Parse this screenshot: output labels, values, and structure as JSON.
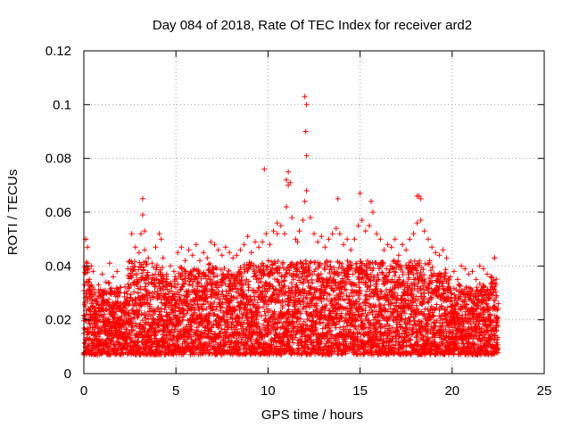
{
  "chart_data": {
    "type": "scatter",
    "title": "Day 084 of 2018, Rate Of TEC Index for receiver ard2",
    "xlabel": "GPS time / hours",
    "ylabel": "ROTI / TECUs",
    "xlim": [
      0,
      25
    ],
    "ylim": [
      0,
      0.12
    ],
    "xticks": [
      0,
      5,
      10,
      15,
      20,
      25
    ],
    "yticks": [
      0,
      0.02,
      0.04,
      0.06,
      0.08,
      0.1,
      0.12
    ],
    "ytick_labels": [
      "0",
      "0.02",
      "0.04",
      "0.06",
      "0.08",
      "0.1",
      "0.12"
    ],
    "grid": true,
    "marker": "+",
    "color": "#ff0000",
    "series": [
      {
        "name": "ard2",
        "x": [
          0.0,
          0.1,
          0.2,
          0.3,
          0.4,
          0.5,
          0.6,
          0.8,
          1.0,
          1.2,
          1.4,
          1.6,
          1.8,
          2.0,
          2.2,
          2.4,
          2.6,
          2.8,
          3.0,
          3.1,
          3.2,
          3.3,
          3.5,
          3.7,
          3.9,
          4.1,
          4.3,
          4.5,
          4.7,
          4.9,
          5.1,
          5.3,
          5.5,
          5.7,
          5.9,
          6.1,
          6.3,
          6.5,
          6.7,
          6.9,
          7.1,
          7.3,
          7.5,
          7.7,
          7.9,
          8.1,
          8.3,
          8.5,
          8.7,
          8.9,
          9.1,
          9.3,
          9.5,
          9.7,
          9.9,
          10.1,
          10.3,
          10.5,
          10.7,
          10.9,
          11.0,
          11.1,
          11.3,
          11.5,
          11.7,
          11.9,
          12.0,
          12.1,
          12.3,
          12.5,
          12.7,
          12.9,
          13.1,
          13.3,
          13.5,
          13.7,
          13.9,
          14.1,
          14.3,
          14.5,
          14.7,
          14.9,
          15.1,
          15.3,
          15.5,
          15.7,
          15.9,
          16.1,
          16.3,
          16.5,
          16.7,
          16.9,
          17.1,
          17.3,
          17.5,
          17.7,
          17.9,
          18.1,
          18.3,
          18.5,
          18.7,
          18.9,
          19.1,
          19.3,
          19.5,
          19.7,
          19.9,
          20.1,
          20.3,
          20.5,
          20.7,
          20.9,
          21.1,
          21.3,
          21.5,
          21.7,
          21.9,
          22.1,
          22.3,
          22.4,
          22.5,
          0.1,
          3.2,
          3.3,
          9.8,
          11.0,
          11.1,
          11.2,
          12.0,
          12.1,
          12.05,
          12.1,
          13.8,
          15.0,
          15.6,
          18.1,
          18.2,
          18.3,
          22.3,
          0.2,
          4.2,
          10.5,
          11.6
        ],
        "y": [
          0.015,
          0.05,
          0.041,
          0.035,
          0.04,
          0.038,
          0.03,
          0.033,
          0.037,
          0.034,
          0.041,
          0.036,
          0.038,
          0.032,
          0.03,
          0.039,
          0.052,
          0.047,
          0.045,
          0.052,
          0.059,
          0.046,
          0.043,
          0.041,
          0.047,
          0.052,
          0.043,
          0.037,
          0.04,
          0.038,
          0.045,
          0.047,
          0.042,
          0.046,
          0.044,
          0.048,
          0.042,
          0.045,
          0.043,
          0.049,
          0.048,
          0.046,
          0.044,
          0.047,
          0.045,
          0.043,
          0.044,
          0.046,
          0.048,
          0.051,
          0.045,
          0.049,
          0.047,
          0.049,
          0.052,
          0.048,
          0.053,
          0.056,
          0.055,
          0.052,
          0.062,
          0.07,
          0.058,
          0.05,
          0.053,
          0.057,
          0.064,
          0.068,
          0.058,
          0.052,
          0.049,
          0.051,
          0.047,
          0.05,
          0.052,
          0.054,
          0.052,
          0.048,
          0.05,
          0.046,
          0.05,
          0.055,
          0.057,
          0.053,
          0.055,
          0.06,
          0.052,
          0.05,
          0.046,
          0.048,
          0.047,
          0.05,
          0.044,
          0.048,
          0.046,
          0.05,
          0.052,
          0.056,
          0.057,
          0.053,
          0.05,
          0.047,
          0.045,
          0.044,
          0.046,
          0.043,
          0.036,
          0.038,
          0.035,
          0.04,
          0.039,
          0.037,
          0.038,
          0.035,
          0.04,
          0.039,
          0.037,
          0.036,
          0.043,
          0.029,
          0.026,
          0.05,
          0.065,
          0.053,
          0.076,
          0.072,
          0.075,
          0.071,
          0.103,
          0.1,
          0.09,
          0.081,
          0.065,
          0.067,
          0.064,
          0.066,
          0.066,
          0.065,
          0.043,
          0.047,
          0.05,
          0.052,
          0.049
        ]
      }
    ],
    "dense_band": {
      "description": "dense measurements",
      "x_start": 0.0,
      "x_end": 22.5,
      "y_floor": 0.003
    }
  }
}
